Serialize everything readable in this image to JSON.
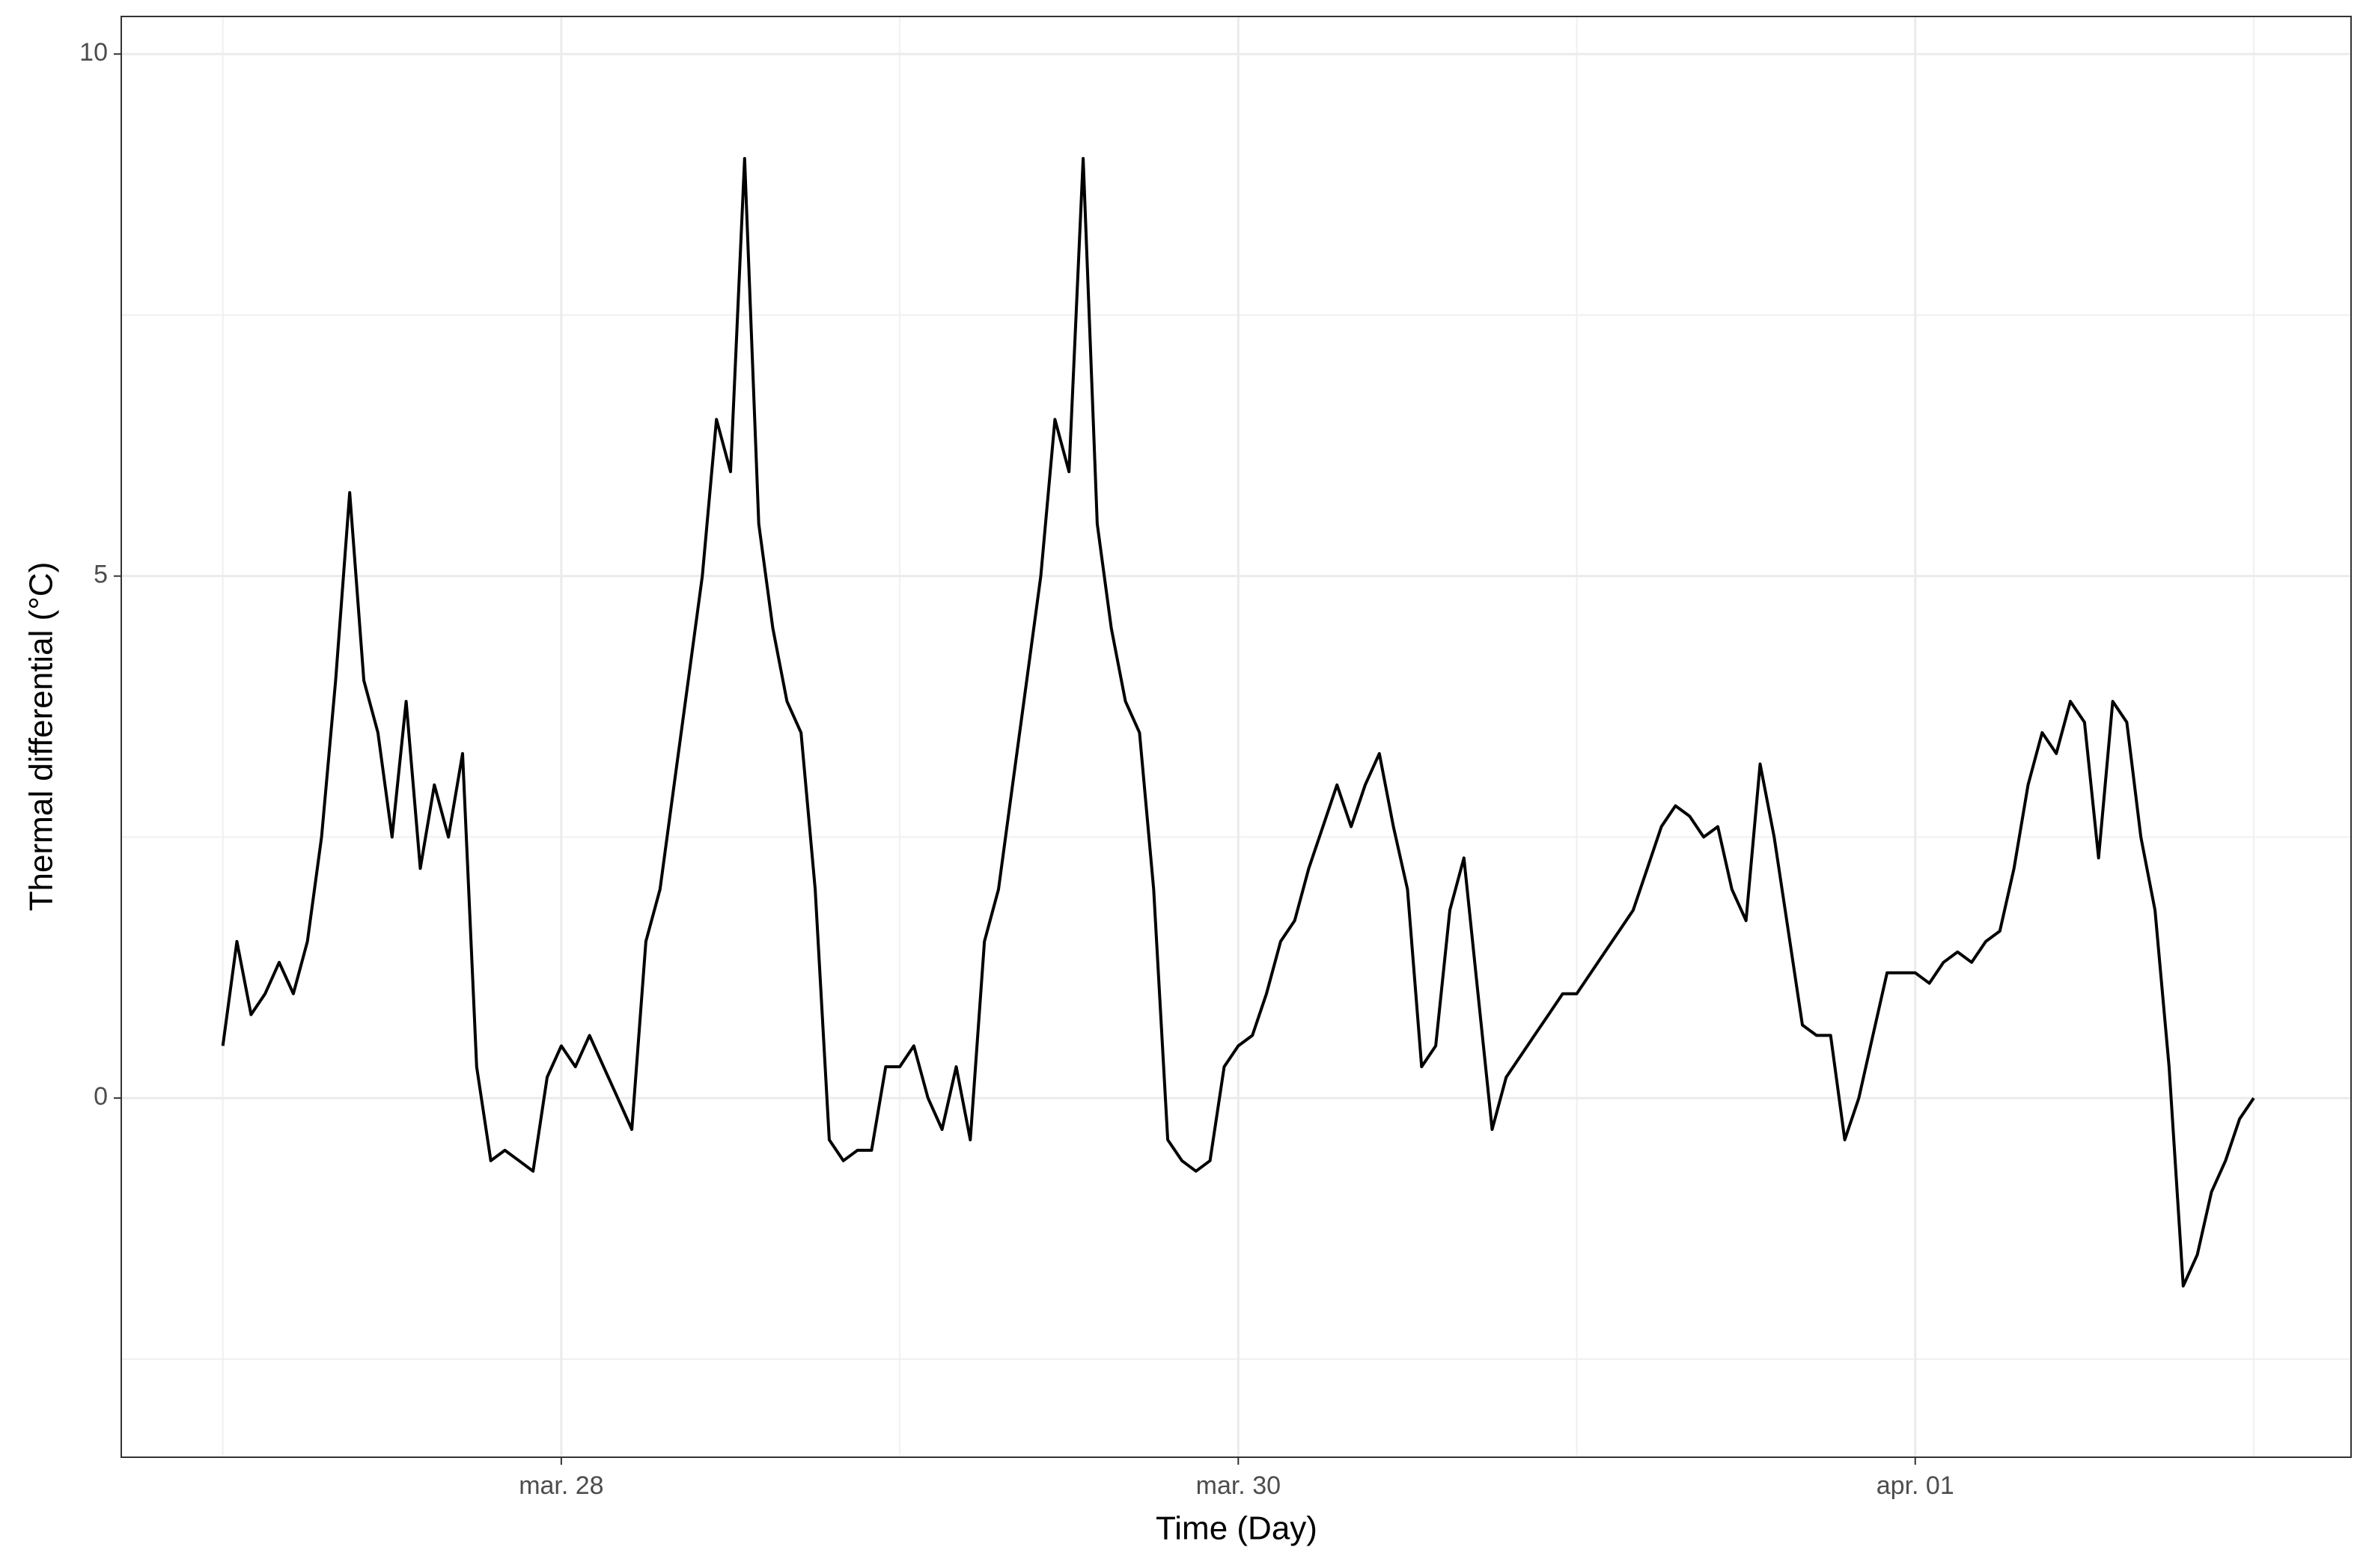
{
  "chart_data": {
    "type": "line",
    "x_label": "Time (Day)",
    "y_label": "Thermal differential (°C)",
    "x": [
      0,
      1,
      2,
      3,
      4,
      5,
      6,
      7,
      8,
      9,
      10,
      11,
      12,
      13,
      14,
      15,
      16,
      17,
      18,
      19,
      20,
      21,
      22,
      23,
      24,
      25,
      26,
      27,
      28,
      29,
      30,
      31,
      32,
      33,
      34,
      35,
      36,
      37,
      38,
      39,
      40,
      41,
      42,
      43,
      44,
      45,
      46,
      47,
      48,
      49,
      50,
      51,
      52,
      53,
      54,
      55,
      56,
      57,
      58,
      59,
      60,
      61,
      62,
      63,
      64,
      65,
      66,
      67,
      68,
      69,
      70,
      71,
      72,
      73,
      74,
      75,
      76,
      77,
      78,
      79,
      80,
      81,
      82,
      83,
      84,
      85,
      86,
      87,
      88,
      89,
      90,
      91,
      92,
      93,
      94,
      95,
      96,
      97,
      98,
      99,
      100,
      101,
      102,
      103,
      104,
      105,
      106,
      107,
      108,
      109,
      110,
      111,
      112,
      113,
      114,
      115,
      116,
      117,
      118,
      119,
      120,
      121,
      122,
      123,
      124,
      125,
      126,
      127,
      128,
      129,
      130,
      131,
      132,
      133,
      134,
      135,
      136,
      137,
      138,
      139,
      140,
      141,
      142,
      143,
      144
    ],
    "values": [
      0.5,
      1.5,
      0.8,
      1.0,
      1.3,
      1.0,
      1.5,
      2.5,
      4.0,
      5.8,
      4.0,
      3.5,
      2.5,
      3.8,
      2.2,
      3.0,
      2.5,
      3.3,
      0.3,
      -0.6,
      -0.5,
      -0.6,
      -0.7,
      0.2,
      0.5,
      0.3,
      0.6,
      0.3,
      0.0,
      -0.3,
      1.5,
      2.0,
      3.0,
      4.0,
      5.0,
      6.5,
      6.0,
      9.0,
      5.5,
      4.5,
      3.8,
      3.5,
      2.0,
      -0.4,
      -0.6,
      -0.5,
      -0.5,
      0.3,
      0.3,
      0.5,
      0.0,
      -0.3,
      0.3,
      -0.4,
      1.5,
      2.0,
      3.0,
      4.0,
      5.0,
      6.5,
      6.0,
      9.0,
      5.5,
      4.5,
      3.8,
      3.5,
      2.0,
      -0.4,
      -0.6,
      -0.7,
      -0.6,
      0.3,
      0.5,
      0.6,
      1.0,
      1.5,
      1.7,
      2.2,
      2.6,
      3.0,
      2.6,
      3.0,
      3.3,
      2.6,
      2.0,
      0.3,
      0.5,
      1.8,
      2.3,
      1.0,
      -0.3,
      0.2,
      0.4,
      0.6,
      0.8,
      1.0,
      1.0,
      1.2,
      1.4,
      1.6,
      1.8,
      2.2,
      2.6,
      2.8,
      2.7,
      2.5,
      2.6,
      2.0,
      1.7,
      3.2,
      2.5,
      1.6,
      0.7,
      0.6,
      0.6,
      -0.4,
      0.0,
      0.6,
      1.2,
      1.2,
      1.2,
      1.1,
      1.3,
      1.4,
      1.3,
      1.5,
      1.6,
      2.2,
      3.0,
      3.5,
      3.3,
      3.8,
      3.6,
      2.3,
      3.8,
      3.6,
      2.5,
      1.8,
      0.3,
      -1.8,
      -1.5,
      -0.9,
      -0.6,
      -0.2,
      0.0
    ],
    "color": "#000000",
    "xlim": [
      -7.2,
      150.9
    ],
    "xticks": [
      {
        "value": 24,
        "label": "mar. 28"
      },
      {
        "value": 72,
        "label": "mar. 30"
      },
      {
        "value": 120,
        "label": "apr. 01"
      }
    ],
    "minor_xticks": [
      0,
      48,
      96,
      144
    ],
    "ylim": [
      -3.44,
      10.36
    ],
    "yticks": [
      0,
      5,
      10
    ],
    "minor_yticks": [
      -2.5,
      2.5,
      7.5
    ],
    "grid": true
  }
}
